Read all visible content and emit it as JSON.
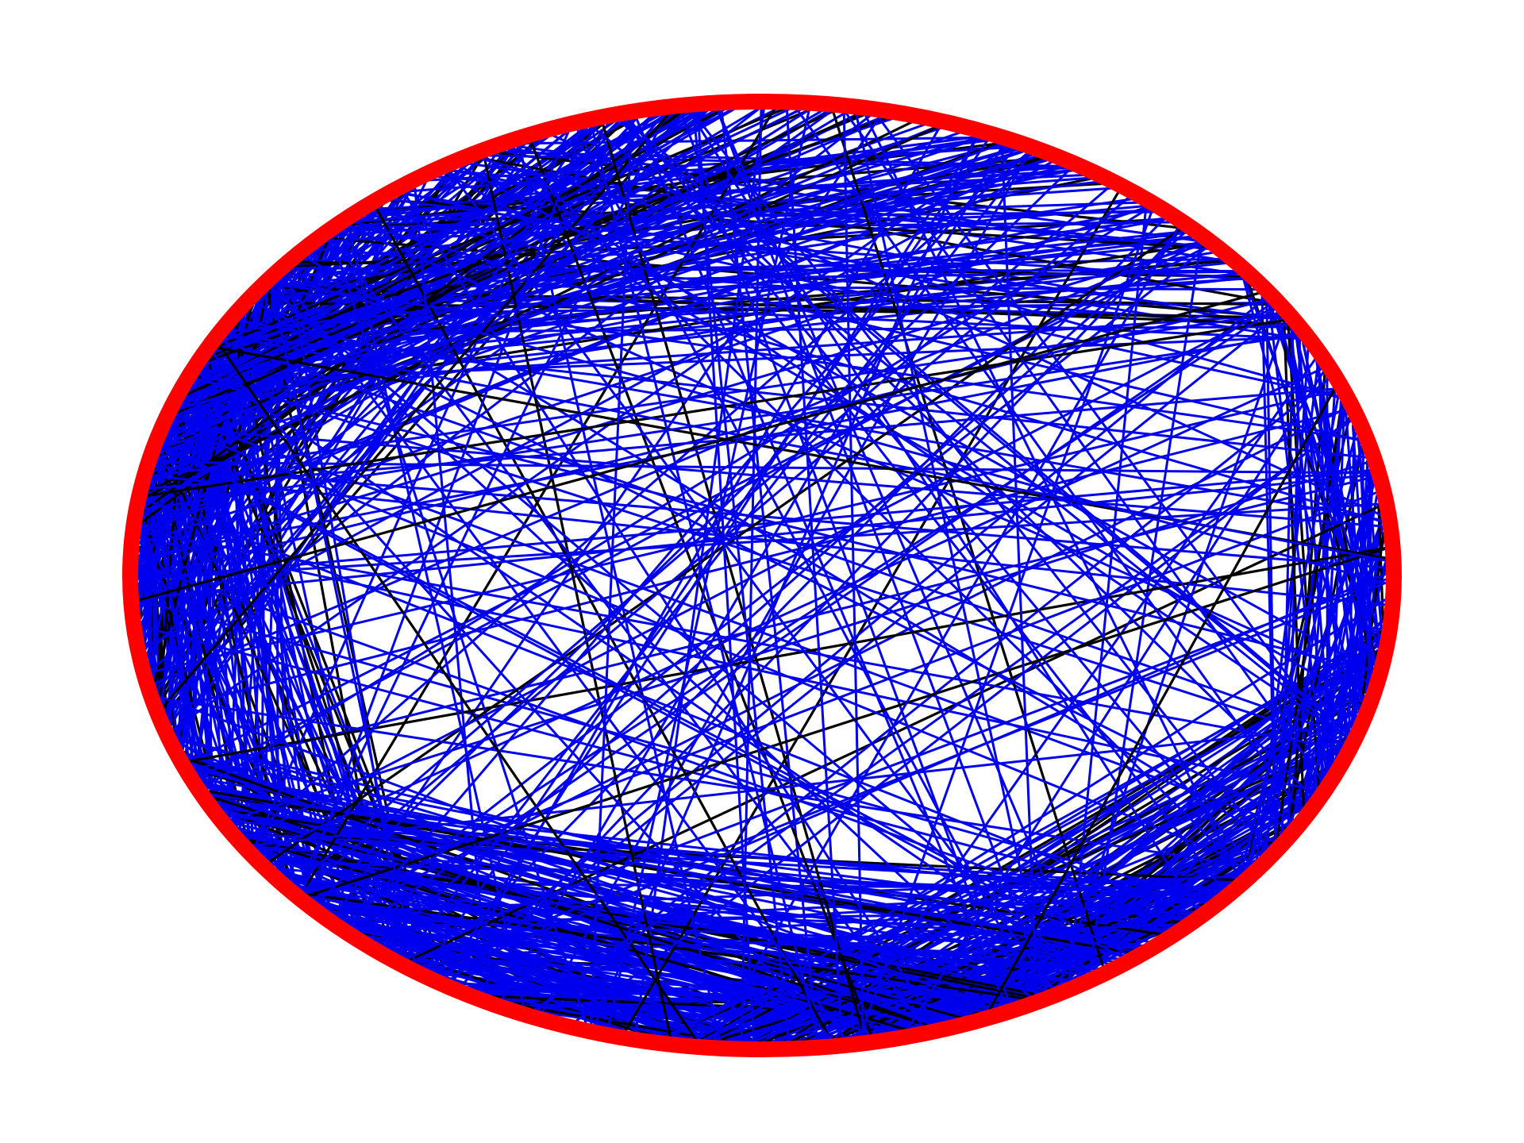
{
  "diagram": {
    "type": "circular-graph",
    "layout": "circular",
    "ring_color": "#ff0000",
    "edge_colors": {
      "primary": "#0000ee",
      "secondary": "#000000"
    },
    "background": "#ffffff"
  }
}
